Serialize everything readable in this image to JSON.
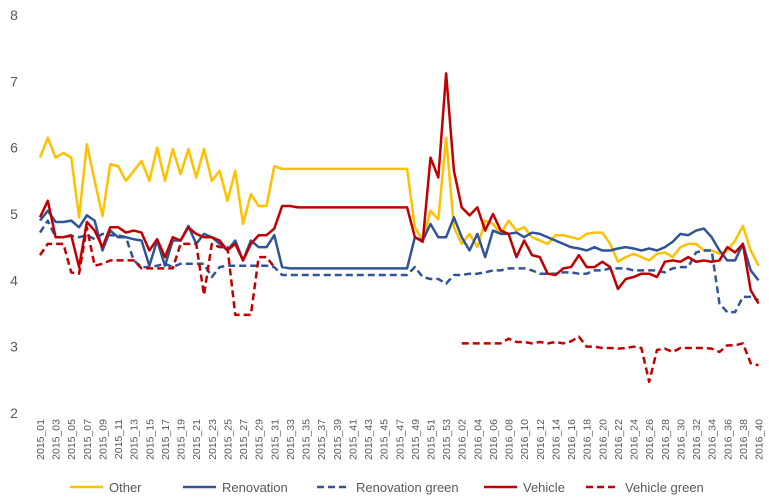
{
  "chart_data": {
    "type": "line",
    "categories": [
      "2015_01",
      null,
      "2015_03",
      null,
      "2015_05",
      null,
      "2015_07",
      null,
      "2015_09",
      null,
      "2015_11",
      null,
      "2015_13",
      null,
      "2015_15",
      null,
      "2015_17",
      null,
      "2015_19",
      null,
      "2015_21",
      null,
      "2015_23",
      null,
      "2015_25",
      null,
      "2015_27",
      null,
      "2015_29",
      null,
      "2015_31",
      null,
      "2015_33",
      null,
      "2015_35",
      null,
      "2015_37",
      null,
      "2015_39",
      null,
      "2015_41",
      null,
      "2015_43",
      null,
      "2015_45",
      null,
      "2015_47",
      null,
      "2015_49",
      null,
      "2015_51",
      null,
      "2015_53",
      null,
      "2016_02",
      null,
      "2016_04",
      null,
      "2016_06",
      null,
      "2016_08",
      null,
      "2016_10",
      null,
      "2016_12",
      null,
      "2016_14",
      null,
      "2016_16",
      null,
      "2016_18",
      null,
      "2016_20",
      null,
      "2016_22",
      null,
      "2016_24",
      null,
      "2016_26",
      null,
      "2016_28",
      null,
      "2016_30",
      null,
      "2016_32",
      null,
      "2016_34",
      null,
      "2016_36",
      null,
      "2016_38",
      null,
      "2016_40"
    ],
    "series": [
      {
        "name": "Other",
        "color": "#ffc000",
        "style": "solid",
        "values": [
          5.85,
          6.15,
          5.85,
          5.92,
          5.85,
          4.95,
          6.05,
          5.5,
          4.97,
          5.75,
          5.72,
          5.5,
          5.65,
          5.8,
          5.5,
          6.0,
          5.5,
          5.98,
          5.6,
          5.98,
          5.55,
          5.98,
          5.5,
          5.65,
          5.2,
          5.65,
          4.85,
          5.3,
          5.12,
          5.12,
          5.72,
          5.68,
          5.68,
          5.68,
          5.68,
          5.68,
          5.68,
          5.68,
          5.68,
          5.68,
          5.68,
          5.68,
          5.68,
          5.68,
          5.68,
          5.68,
          5.68,
          5.68,
          4.8,
          4.6,
          5.05,
          4.92,
          6.15,
          4.8,
          4.55,
          4.7,
          4.5,
          4.9,
          4.85,
          4.7,
          4.9,
          4.75,
          4.8,
          4.65,
          4.6,
          4.55,
          4.68,
          4.68,
          4.65,
          4.62,
          4.7,
          4.72,
          4.72,
          4.55,
          4.28,
          4.35,
          4.4,
          4.35,
          4.3,
          4.4,
          4.42,
          4.35,
          4.5,
          4.55,
          4.55,
          4.45,
          4.45,
          4.4,
          4.45,
          4.6,
          4.82,
          4.45,
          4.22
        ]
      },
      {
        "name": "Renovation",
        "color": "#2f5597",
        "style": "solid",
        "values": [
          4.9,
          5.05,
          4.88,
          4.88,
          4.9,
          4.8,
          4.98,
          4.9,
          4.45,
          4.75,
          4.65,
          4.65,
          4.62,
          4.6,
          4.22,
          4.6,
          4.22,
          4.6,
          4.6,
          4.82,
          4.55,
          4.7,
          4.65,
          4.55,
          4.45,
          4.6,
          4.3,
          4.6,
          4.5,
          4.5,
          4.68,
          4.2,
          4.18,
          4.18,
          4.18,
          4.18,
          4.18,
          4.18,
          4.18,
          4.18,
          4.18,
          4.18,
          4.18,
          4.18,
          4.18,
          4.18,
          4.18,
          4.18,
          4.65,
          4.6,
          4.85,
          4.65,
          4.65,
          4.95,
          4.65,
          4.45,
          4.7,
          4.35,
          4.75,
          4.7,
          4.7,
          4.72,
          4.65,
          4.72,
          4.7,
          4.65,
          4.6,
          4.55,
          4.5,
          4.48,
          4.45,
          4.5,
          4.45,
          4.45,
          4.48,
          4.5,
          4.48,
          4.45,
          4.48,
          4.45,
          4.5,
          4.58,
          4.7,
          4.68,
          4.75,
          4.78,
          4.65,
          4.45,
          4.3,
          4.3,
          4.55,
          4.15,
          4.0
        ]
      },
      {
        "name": "Renovation green",
        "color": "#2f5597",
        "style": "dashed",
        "values": [
          4.72,
          4.9,
          4.65,
          4.65,
          4.67,
          4.65,
          4.68,
          4.62,
          4.7,
          4.68,
          4.68,
          4.65,
          4.3,
          4.2,
          4.2,
          4.22,
          4.25,
          4.2,
          4.25,
          4.25,
          4.25,
          4.25,
          4.05,
          4.2,
          4.22,
          4.22,
          4.22,
          4.22,
          4.22,
          4.22,
          4.2,
          4.08,
          4.08,
          4.08,
          4.08,
          4.08,
          4.08,
          4.08,
          4.08,
          4.08,
          4.08,
          4.08,
          4.08,
          4.08,
          4.08,
          4.08,
          4.08,
          4.08,
          4.2,
          4.05,
          4.02,
          4.02,
          3.95,
          4.08,
          4.08,
          4.1,
          4.1,
          4.12,
          4.15,
          4.15,
          4.18,
          4.18,
          4.18,
          4.15,
          4.1,
          4.1,
          4.1,
          4.12,
          4.12,
          4.1,
          4.1,
          4.15,
          4.15,
          4.18,
          4.18,
          4.18,
          4.15,
          4.15,
          4.15,
          4.15,
          4.12,
          4.18,
          4.2,
          4.2,
          4.42,
          4.45,
          4.45,
          3.65,
          3.52,
          3.52,
          3.75,
          3.75,
          3.7
        ]
      },
      {
        "name": "Vehicle",
        "color": "#c00000",
        "style": "solid",
        "values": [
          4.95,
          5.2,
          4.65,
          4.65,
          4.68,
          4.2,
          4.88,
          4.75,
          4.5,
          4.8,
          4.8,
          4.72,
          4.75,
          4.72,
          4.45,
          4.62,
          4.35,
          4.65,
          4.6,
          4.8,
          4.7,
          4.65,
          4.65,
          4.6,
          4.45,
          4.55,
          4.3,
          4.55,
          4.68,
          4.68,
          4.78,
          5.12,
          5.12,
          5.1,
          5.1,
          5.1,
          5.1,
          5.1,
          5.1,
          5.1,
          5.1,
          5.1,
          5.1,
          5.1,
          5.1,
          5.1,
          5.1,
          5.1,
          4.65,
          4.58,
          5.85,
          5.55,
          7.12,
          5.65,
          5.1,
          4.98,
          5.1,
          4.75,
          5.0,
          4.75,
          4.7,
          4.35,
          4.6,
          4.38,
          4.35,
          4.1,
          4.08,
          4.18,
          4.2,
          4.38,
          4.2,
          4.2,
          4.28,
          4.2,
          3.87,
          4.02,
          4.05,
          4.1,
          4.1,
          4.05,
          4.28,
          4.3,
          4.28,
          4.35,
          4.28,
          4.3,
          4.28,
          4.3,
          4.5,
          4.42,
          4.55,
          3.85,
          3.65
        ]
      },
      {
        "name": "Vehicle green",
        "color": "#c00000",
        "style": "dashed",
        "values": [
          4.38,
          4.55,
          4.55,
          4.55,
          4.12,
          4.1,
          4.8,
          4.22,
          4.25,
          4.3,
          4.3,
          4.3,
          4.3,
          4.18,
          4.18,
          4.18,
          4.18,
          4.18,
          4.55,
          4.55,
          4.55,
          3.78,
          4.55,
          4.5,
          4.5,
          3.48,
          3.48,
          3.48,
          4.35,
          4.35,
          4.2,
          null,
          null,
          null,
          null,
          null,
          null,
          null,
          null,
          null,
          null,
          null,
          null,
          null,
          null,
          null,
          null,
          null,
          null,
          null,
          null,
          null,
          null,
          null,
          3.05,
          3.05,
          3.05,
          3.05,
          3.05,
          3.05,
          3.12,
          3.07,
          3.07,
          3.05,
          3.07,
          3.05,
          3.07,
          3.05,
          3.08,
          3.15,
          3.0,
          3.0,
          2.98,
          2.98,
          2.97,
          2.98,
          3.0,
          2.98,
          2.47,
          2.95,
          2.97,
          2.92,
          2.98,
          2.98,
          2.98,
          2.98,
          2.97,
          2.92,
          3.02,
          3.02,
          3.05,
          2.75,
          2.72
        ]
      }
    ],
    "ylim": [
      2,
      8
    ],
    "yticks": [
      2,
      3,
      4,
      5,
      6,
      7,
      8
    ],
    "grid": false,
    "legend": "bottom"
  }
}
